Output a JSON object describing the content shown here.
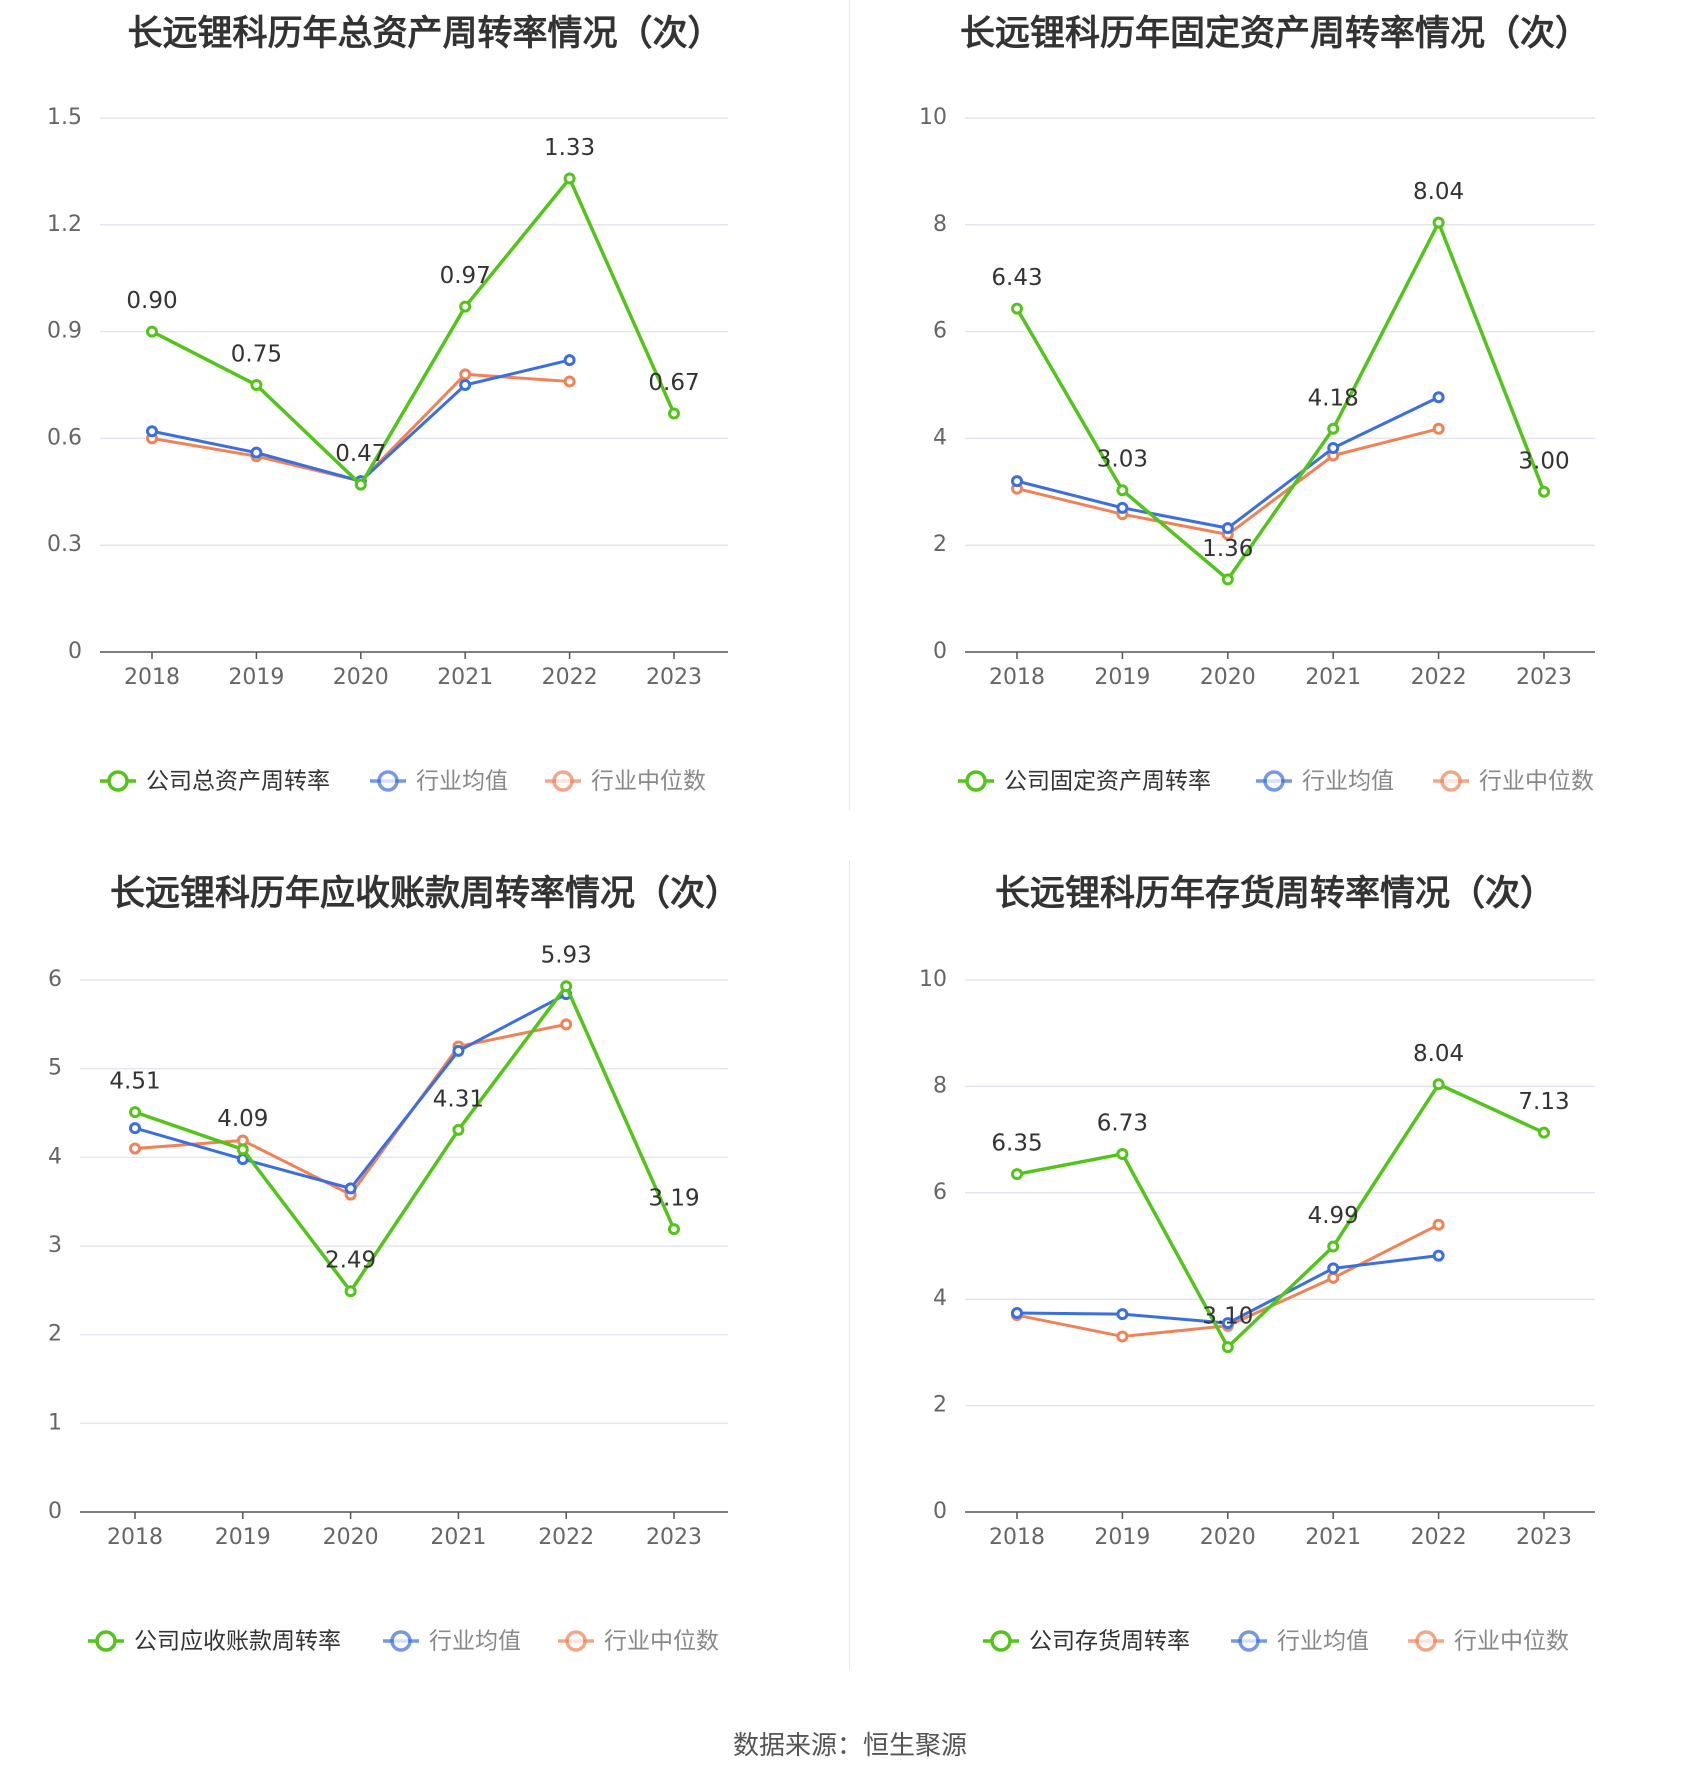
{
  "source_label": "数据来源：恒生聚源",
  "colors": {
    "company": "#52c41a",
    "avg": "#3b6fde",
    "median": "#f08257",
    "grid": "#e3e6f0",
    "axis": "#555555"
  },
  "chart_data": [
    {
      "type": "line",
      "title": "长远锂科历年总资产周转率情况（次）",
      "x": [
        "2018",
        "2019",
        "2020",
        "2021",
        "2022",
        "2023"
      ],
      "ylim": [
        0,
        1.5
      ],
      "yticks": [
        "0",
        "0.3",
        "0.6",
        "0.9",
        "1.2",
        "1.5"
      ],
      "ytick_values": [
        0,
        0.3,
        0.6,
        0.9,
        1.2,
        1.5
      ],
      "grid": true,
      "legend_position": "bottom",
      "series": [
        {
          "name": "公司总资产周转率",
          "values": [
            0.9,
            0.75,
            0.47,
            0.97,
            1.33,
            0.67
          ],
          "labels": [
            "0.90",
            "0.75",
            "0.47",
            "0.97",
            "1.33",
            "0.67"
          ]
        },
        {
          "name": "行业均值",
          "values": [
            0.62,
            0.56,
            0.48,
            0.75,
            0.82,
            null
          ]
        },
        {
          "name": "行业中位数",
          "values": [
            0.6,
            0.55,
            0.48,
            0.78,
            0.76,
            null
          ]
        }
      ]
    },
    {
      "type": "line",
      "title": "长远锂科历年固定资产周转率情况（次）",
      "x": [
        "2018",
        "2019",
        "2020",
        "2021",
        "2022",
        "2023"
      ],
      "ylim": [
        0,
        10
      ],
      "yticks": [
        "0",
        "2",
        "4",
        "6",
        "8",
        "10"
      ],
      "ytick_values": [
        0,
        2,
        4,
        6,
        8,
        10
      ],
      "grid": true,
      "legend_position": "bottom",
      "series": [
        {
          "name": "公司固定资产周转率",
          "values": [
            6.43,
            3.03,
            1.36,
            4.18,
            8.04,
            3.0
          ],
          "labels": [
            "6.43",
            "3.03",
            "1.36",
            "4.18",
            "8.04",
            "3.00"
          ]
        },
        {
          "name": "行业均值",
          "values": [
            3.2,
            2.7,
            2.32,
            3.82,
            4.77,
            null
          ]
        },
        {
          "name": "行业中位数",
          "values": [
            3.06,
            2.58,
            2.2,
            3.68,
            4.18,
            null
          ]
        }
      ]
    },
    {
      "type": "line",
      "title": "长远锂科历年应收账款周转率情况（次）",
      "x": [
        "2018",
        "2019",
        "2020",
        "2021",
        "2022",
        "2023"
      ],
      "ylim": [
        0,
        6
      ],
      "yticks": [
        "0",
        "1",
        "2",
        "3",
        "4",
        "5",
        "6"
      ],
      "ytick_values": [
        0,
        1,
        2,
        3,
        4,
        5,
        6
      ],
      "grid": true,
      "legend_position": "bottom",
      "series": [
        {
          "name": "公司应收账款周转率",
          "values": [
            4.51,
            4.09,
            2.49,
            4.31,
            5.93,
            3.19
          ],
          "labels": [
            "4.51",
            "4.09",
            "2.49",
            "4.31",
            "5.93",
            "3.19"
          ]
        },
        {
          "name": "行业均值",
          "values": [
            4.33,
            3.98,
            3.65,
            5.2,
            5.84,
            null
          ]
        },
        {
          "name": "行业中位数",
          "values": [
            4.1,
            4.19,
            3.58,
            5.25,
            5.5,
            null
          ]
        }
      ]
    },
    {
      "type": "line",
      "title": "长远锂科历年存货周转率情况（次）",
      "x": [
        "2018",
        "2019",
        "2020",
        "2021",
        "2022",
        "2023"
      ],
      "ylim": [
        0,
        10
      ],
      "yticks": [
        "0",
        "2",
        "4",
        "6",
        "8",
        "10"
      ],
      "ytick_values": [
        0,
        2,
        4,
        6,
        8,
        10
      ],
      "grid": true,
      "legend_position": "bottom",
      "series": [
        {
          "name": "公司存货周转率",
          "values": [
            6.35,
            6.73,
            3.1,
            4.99,
            8.04,
            7.13
          ],
          "labels": [
            "6.35",
            "6.73",
            "3.10",
            "4.99",
            "8.04",
            "7.13"
          ]
        },
        {
          "name": "行业均值",
          "values": [
            3.74,
            3.72,
            3.55,
            4.58,
            4.82,
            null
          ]
        },
        {
          "name": "行业中位数",
          "values": [
            3.7,
            3.3,
            3.5,
            4.4,
            5.4,
            null
          ]
        }
      ]
    }
  ]
}
